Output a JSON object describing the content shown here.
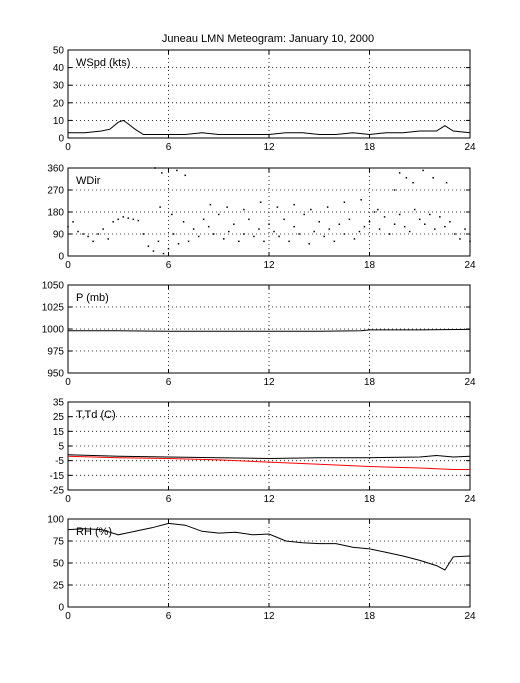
{
  "title": "Juneau LMN Meteogram:    January 10, 2000",
  "colors": {
    "axes": "#000000",
    "grid": "#000000",
    "series_black": "#000000",
    "series_red": "#ff0000"
  },
  "chart_data": [
    {
      "type": "line",
      "label": "WSpd (kts)",
      "xlim": [
        0,
        24
      ],
      "xticks": [
        0,
        6,
        12,
        18,
        24
      ],
      "ylim": [
        0,
        50
      ],
      "yticks": [
        0,
        10,
        20,
        30,
        40,
        50
      ],
      "grid": true,
      "series": [
        {
          "color": "#000000",
          "x": [
            0,
            1,
            2,
            2.5,
            3,
            3.3,
            3.6,
            4,
            4.5,
            5,
            6,
            7,
            8,
            9,
            10,
            11,
            12,
            13,
            14,
            15,
            16,
            17,
            18,
            19,
            20,
            21,
            22,
            22.5,
            23,
            24
          ],
          "y": [
            3,
            3,
            4,
            5,
            9,
            10,
            8,
            5,
            2,
            2,
            2,
            2,
            3,
            2,
            2,
            2,
            2,
            3,
            3,
            2,
            2,
            3,
            2,
            3,
            3,
            4,
            4,
            7,
            4,
            3
          ]
        }
      ]
    },
    {
      "type": "scatter",
      "label": "WDir",
      "xlim": [
        0,
        24
      ],
      "xticks": [
        0,
        6,
        12,
        18,
        24
      ],
      "ylim": [
        0,
        360
      ],
      "yticks": [
        0,
        90,
        180,
        270,
        360
      ],
      "grid": true,
      "series": [
        {
          "color": "#000000",
          "x": [
            0,
            0.3,
            0.6,
            0.9,
            1.2,
            1.5,
            1.8,
            2.1,
            2.4,
            2.7,
            3.0,
            3.3,
            3.6,
            3.9,
            4.2,
            4.5,
            4.8,
            5.1,
            5.4,
            5.7,
            6.0,
            6.3,
            6.6,
            6.9,
            7.2,
            7.5,
            7.8,
            8.1,
            8.4,
            8.7,
            9.0,
            9.3,
            9.6,
            9.9,
            10.2,
            10.5,
            10.8,
            11.1,
            11.4,
            11.7,
            12.0,
            12.3,
            12.6,
            12.9,
            13.2,
            13.5,
            13.8,
            14.1,
            14.4,
            14.7,
            15.0,
            15.3,
            15.6,
            15.9,
            16.2,
            16.5,
            16.8,
            17.1,
            17.4,
            17.7,
            18.0,
            18.3,
            18.6,
            18.9,
            19.2,
            19.5,
            19.8,
            20.1,
            20.4,
            20.7,
            21.0,
            21.3,
            21.6,
            21.9,
            22.2,
            22.5,
            22.8,
            23.1,
            23.4,
            23.7,
            24.0,
            5.2,
            5.6,
            6.5,
            7.0,
            8.5,
            9.5,
            10.5,
            11.5,
            12.5,
            13.5,
            14.5,
            15.5,
            16.5,
            17.5,
            18.5,
            19.5,
            19.8,
            20.2,
            20.6,
            21.2,
            21.8,
            22.6,
            5.5,
            6.2
          ],
          "y": [
            120,
            140,
            100,
            90,
            80,
            60,
            90,
            110,
            70,
            140,
            150,
            160,
            155,
            150,
            145,
            90,
            40,
            20,
            60,
            10,
            30,
            90,
            50,
            140,
            60,
            110,
            80,
            150,
            120,
            90,
            170,
            70,
            100,
            130,
            60,
            90,
            150,
            80,
            110,
            60,
            130,
            100,
            80,
            150,
            60,
            120,
            90,
            170,
            50,
            100,
            140,
            80,
            110,
            60,
            130,
            90,
            150,
            70,
            100,
            120,
            140,
            180,
            110,
            160,
            90,
            130,
            170,
            120,
            100,
            190,
            150,
            130,
            170,
            110,
            160,
            120,
            140,
            90,
            70,
            110,
            60,
            360,
            340,
            350,
            330,
            210,
            200,
            190,
            220,
            200,
            210,
            190,
            200,
            220,
            230,
            190,
            270,
            340,
            320,
            300,
            350,
            320,
            300,
            200,
            170
          ]
        }
      ]
    },
    {
      "type": "line",
      "label": "P (mb)",
      "xlim": [
        0,
        24
      ],
      "xticks": [
        0,
        6,
        12,
        18,
        24
      ],
      "ylim": [
        950,
        1050
      ],
      "yticks": [
        950,
        975,
        1000,
        1025,
        1050
      ],
      "grid": true,
      "series": [
        {
          "color": "#000000",
          "x": [
            0,
            3,
            6,
            9,
            12,
            15,
            17.5,
            18,
            21,
            24
          ],
          "y": [
            998,
            998,
            997.5,
            997.5,
            997.5,
            997.5,
            998,
            999,
            999,
            999.5
          ]
        }
      ]
    },
    {
      "type": "line",
      "label": "T,Td (C)",
      "xlim": [
        0,
        24
      ],
      "xticks": [
        0,
        6,
        12,
        18,
        24
      ],
      "ylim": [
        -25,
        35
      ],
      "yticks": [
        -25,
        -15,
        -5,
        5,
        15,
        25,
        35
      ],
      "grid": true,
      "series": [
        {
          "color": "#000000",
          "x": [
            0,
            3,
            6,
            9,
            12,
            15,
            18,
            21,
            22,
            23,
            24
          ],
          "y": [
            -1,
            -2,
            -2.5,
            -3,
            -3.5,
            -3,
            -3,
            -2.5,
            -1.5,
            -2.5,
            -2
          ]
        },
        {
          "color": "#ff0000",
          "x": [
            0,
            3,
            6,
            9,
            12,
            15,
            18,
            21,
            22,
            23,
            24
          ],
          "y": [
            -2,
            -3,
            -3.5,
            -4.5,
            -6,
            -7.5,
            -9,
            -10,
            -10.5,
            -11,
            -11
          ]
        }
      ]
    },
    {
      "type": "line",
      "label": "RH (%)",
      "xlim": [
        0,
        24
      ],
      "xticks": [
        0,
        6,
        12,
        18,
        24
      ],
      "ylim": [
        0,
        100
      ],
      "yticks": [
        0,
        25,
        50,
        75,
        100
      ],
      "grid": true,
      "series": [
        {
          "color": "#000000",
          "x": [
            0,
            1,
            2,
            3,
            4,
            5,
            6,
            7,
            8,
            9,
            10,
            11,
            12,
            13,
            14,
            15,
            16,
            17,
            18,
            19,
            20,
            21,
            22,
            22.5,
            23,
            24
          ],
          "y": [
            88,
            89,
            88,
            82,
            86,
            90,
            95,
            93,
            86,
            84,
            85,
            82,
            83,
            75,
            73,
            72,
            72,
            68,
            66,
            62,
            58,
            53,
            47,
            42,
            57,
            58
          ]
        }
      ]
    }
  ]
}
